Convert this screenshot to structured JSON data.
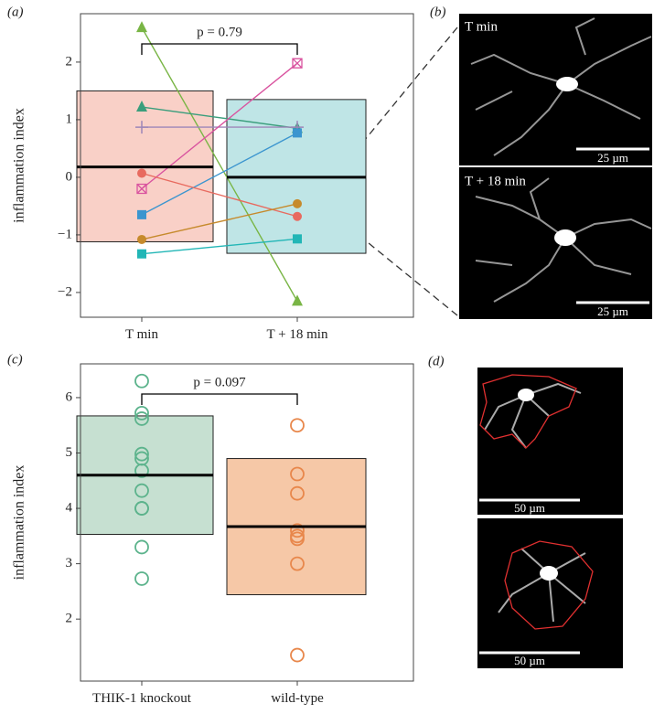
{
  "chart_data": [
    {
      "type": "paired-crossbar",
      "label": "(a)",
      "ylabel": "inflammation index",
      "annotation": "p = 0.79",
      "categories": [
        "T min",
        "T + 18 min"
      ],
      "ylim": [
        -2.43,
        2.84
      ],
      "yticks": [
        {
          "value": -2,
          "label": "−2"
        },
        {
          "value": -1,
          "label": "−1"
        },
        0,
        1,
        2
      ],
      "boxes": [
        {
          "mean": 0.18,
          "low": -1.12,
          "high": 1.5,
          "color": "#f9d0c7"
        },
        {
          "mean": 0.0,
          "low": -1.32,
          "high": 1.35,
          "color": "#bfe5e6"
        }
      ],
      "series": [
        {
          "color": "#79b545",
          "marker": "triangle",
          "values": [
            2.6,
            -2.15
          ]
        },
        {
          "color": "#3a9e7c",
          "marker": "triangle",
          "values": [
            1.22,
            0.85
          ]
        },
        {
          "color": "#9d86b8",
          "marker": "plus",
          "values": [
            0.87,
            0.87
          ]
        },
        {
          "color": "#d9539f",
          "marker": "square-x",
          "values": [
            -0.2,
            1.98
          ]
        },
        {
          "color": "#3b95cf",
          "marker": "square",
          "values": [
            -0.65,
            0.77
          ]
        },
        {
          "color": "#e86a5f",
          "marker": "circle",
          "values": [
            0.07,
            -0.68
          ]
        },
        {
          "color": "#c68a2c",
          "marker": "circle",
          "values": [
            -1.08,
            -0.46
          ]
        },
        {
          "color": "#22b6b6",
          "marker": "square",
          "values": [
            -1.33,
            -1.07
          ]
        }
      ]
    },
    {
      "type": "strip-crossbar",
      "label": "(c)",
      "ylabel": "inflammation index",
      "annotation": "p = 0.097",
      "categories": [
        "THIK-1 knockout",
        "wild-type"
      ],
      "ylim": [
        0.88,
        6.61
      ],
      "yticks": [
        2,
        3,
        4,
        5,
        6
      ],
      "boxes": [
        {
          "mean": 4.6,
          "low": 3.53,
          "high": 5.67,
          "color": "#c6e0d1"
        },
        {
          "mean": 3.67,
          "low": 2.44,
          "high": 4.9,
          "color": "#f6c8a7"
        }
      ],
      "series": [
        {
          "color": "#5cb38c",
          "values": [
            6.3,
            5.72,
            5.62,
            4.98,
            4.9,
            4.68,
            4.32,
            4.0,
            4.0,
            3.3,
            2.73
          ]
        },
        {
          "color": "#e8874b",
          "values": [
            5.5,
            4.62,
            4.27,
            3.6,
            3.5,
            3.45,
            3.0,
            1.35
          ]
        }
      ]
    }
  ],
  "images": {
    "b": {
      "label": "(b)",
      "frames": [
        {
          "caption": "T min",
          "scale": "25 µm"
        },
        {
          "caption": "T + 18 min",
          "scale": "25 µm"
        }
      ]
    },
    "d": {
      "label": "(d)",
      "frames": [
        {
          "scale": "50 µm"
        },
        {
          "scale": "50 µm"
        }
      ]
    }
  }
}
